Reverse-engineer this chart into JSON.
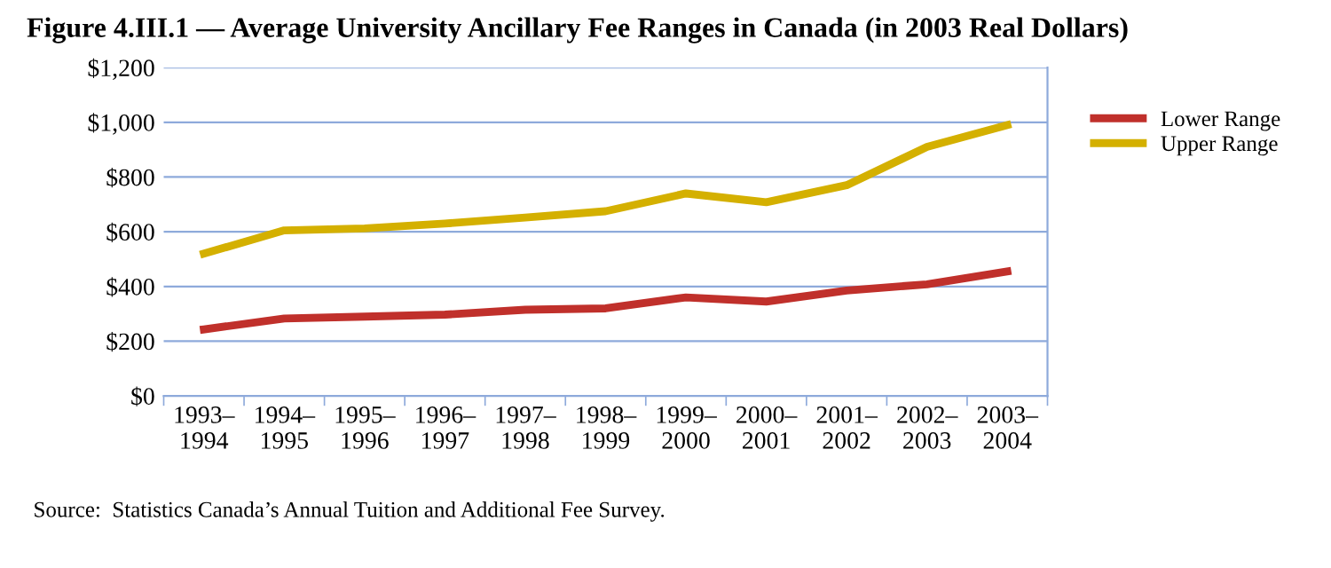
{
  "chart_data": {
    "type": "line",
    "title": "Figure 4.III.1 — Average University Ancillary Fee Ranges in Canada (in 2003 Real Dollars)",
    "categories": [
      "1993–\n1994",
      "1994–\n1995",
      "1995–\n1996",
      "1996–\n1997",
      "1997–\n1998",
      "1998–\n1999",
      "1999–\n2000",
      "2000–\n2001",
      "2001–\n2002",
      "2002–\n2003",
      "2003–\n2004"
    ],
    "series": [
      {
        "name": "Lower Range",
        "color": "#c0302b",
        "values": [
          243,
          283,
          290,
          297,
          315,
          320,
          360,
          345,
          385,
          408,
          455
        ]
      },
      {
        "name": "Upper Range",
        "color": "#d4b000",
        "values": [
          520,
          605,
          612,
          630,
          652,
          675,
          740,
          708,
          770,
          910,
          990
        ]
      }
    ],
    "ylim": [
      0,
      1200
    ],
    "yticks": [
      {
        "value": 0,
        "label": "$0"
      },
      {
        "value": 200,
        "label": "$200"
      },
      {
        "value": 400,
        "label": "$400"
      },
      {
        "value": 600,
        "label": "$600"
      },
      {
        "value": 800,
        "label": "$800"
      },
      {
        "value": 1000,
        "label": "$1,000"
      },
      {
        "value": 1200,
        "label": "$1,200"
      }
    ],
    "grid": "y",
    "legend": "right",
    "marker": "none",
    "line_style": "solid",
    "annotations": [
      "Source:  Statistics Canada’s Annual Tuition and Additional Fee Survey."
    ]
  }
}
